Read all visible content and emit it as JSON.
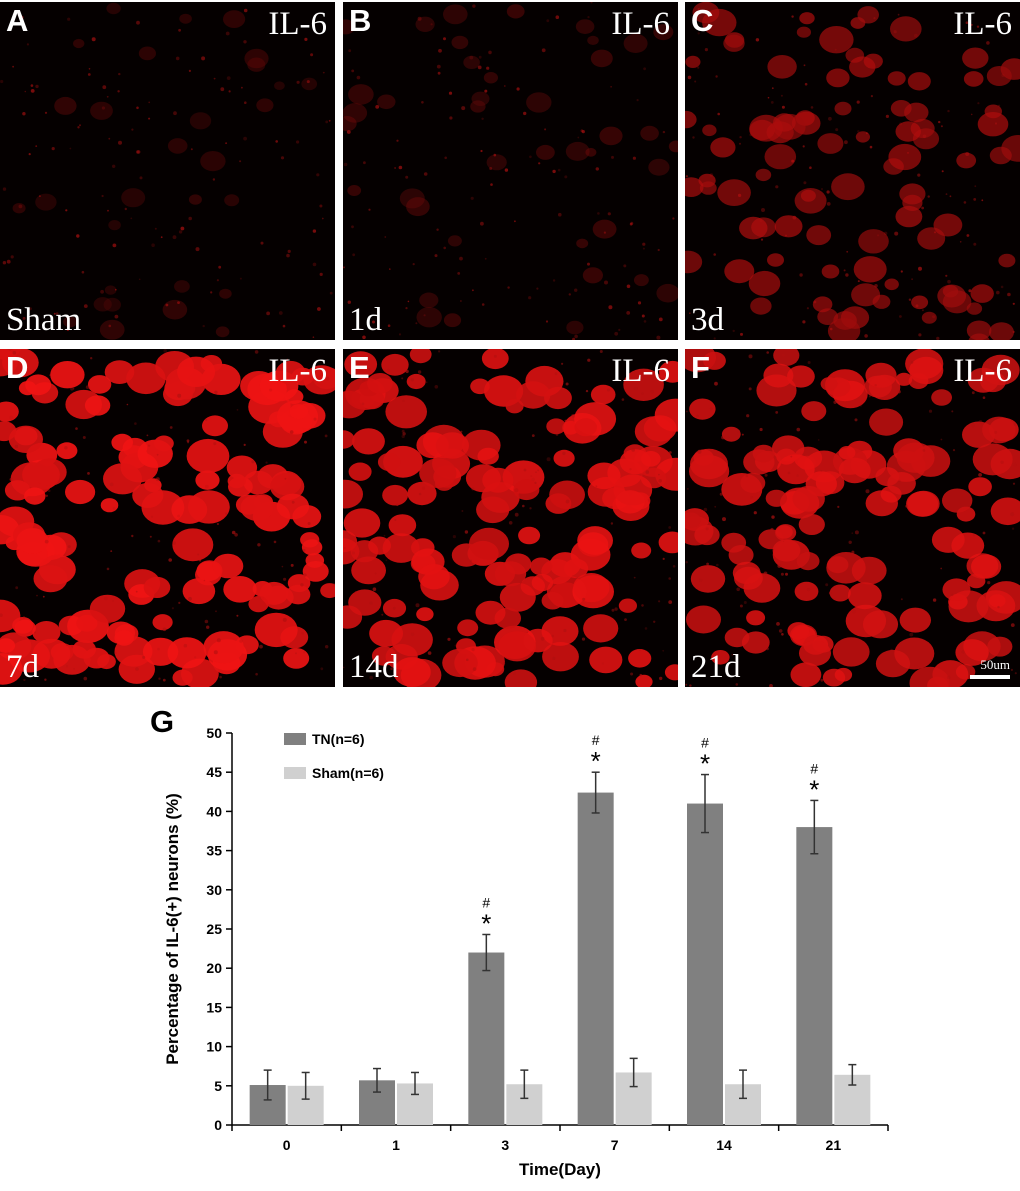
{
  "panels": [
    {
      "label": "A",
      "marker": "IL-6",
      "time": "Sham",
      "intensity": 0.08,
      "scale_label": ""
    },
    {
      "label": "B",
      "marker": "IL-6",
      "time": "1d",
      "intensity": 0.15,
      "scale_label": ""
    },
    {
      "label": "C",
      "marker": "IL-6",
      "time": "3d",
      "intensity": 0.55,
      "scale_label": ""
    },
    {
      "label": "D",
      "marker": "IL-6",
      "time": "7d",
      "intensity": 0.95,
      "scale_label": ""
    },
    {
      "label": "E",
      "marker": "IL-6",
      "time": "14d",
      "intensity": 0.9,
      "scale_label": ""
    },
    {
      "label": "F",
      "marker": "IL-6",
      "time": "21d",
      "intensity": 0.85,
      "scale_label": "50um"
    }
  ],
  "chart_data": {
    "type": "bar",
    "panel_label": "G",
    "categories": [
      "0",
      "1",
      "3",
      "7",
      "14",
      "21"
    ],
    "series": [
      {
        "name": "TN(n=6)",
        "color": "#808080",
        "values": [
          5.1,
          5.7,
          22.0,
          42.4,
          41.0,
          38.0
        ],
        "errors": [
          1.9,
          1.5,
          2.3,
          2.6,
          3.7,
          3.4
        ]
      },
      {
        "name": "Sham(n=6)",
        "color": "#d0d0d0",
        "values": [
          5.0,
          5.3,
          5.2,
          6.7,
          5.2,
          6.4
        ],
        "errors": [
          1.7,
          1.4,
          1.8,
          1.8,
          1.8,
          1.3
        ]
      }
    ],
    "annotations": [
      {
        "category": "3",
        "text": "*"
      },
      {
        "category": "3",
        "text": "#"
      },
      {
        "category": "7",
        "text": "*"
      },
      {
        "category": "7",
        "text": "#"
      },
      {
        "category": "14",
        "text": "*"
      },
      {
        "category": "14",
        "text": "#"
      },
      {
        "category": "21",
        "text": "*"
      },
      {
        "category": "21",
        "text": "#"
      }
    ],
    "xlabel": "Time(Day)",
    "ylabel": "Percentage of IL-6(+) neurons (%)",
    "ylim": [
      0,
      50
    ],
    "yticks": [
      "0",
      "5",
      "10",
      "15",
      "20",
      "25",
      "30",
      "35",
      "40",
      "45",
      "50"
    ],
    "legend_position": "top-left",
    "grid": false
  }
}
